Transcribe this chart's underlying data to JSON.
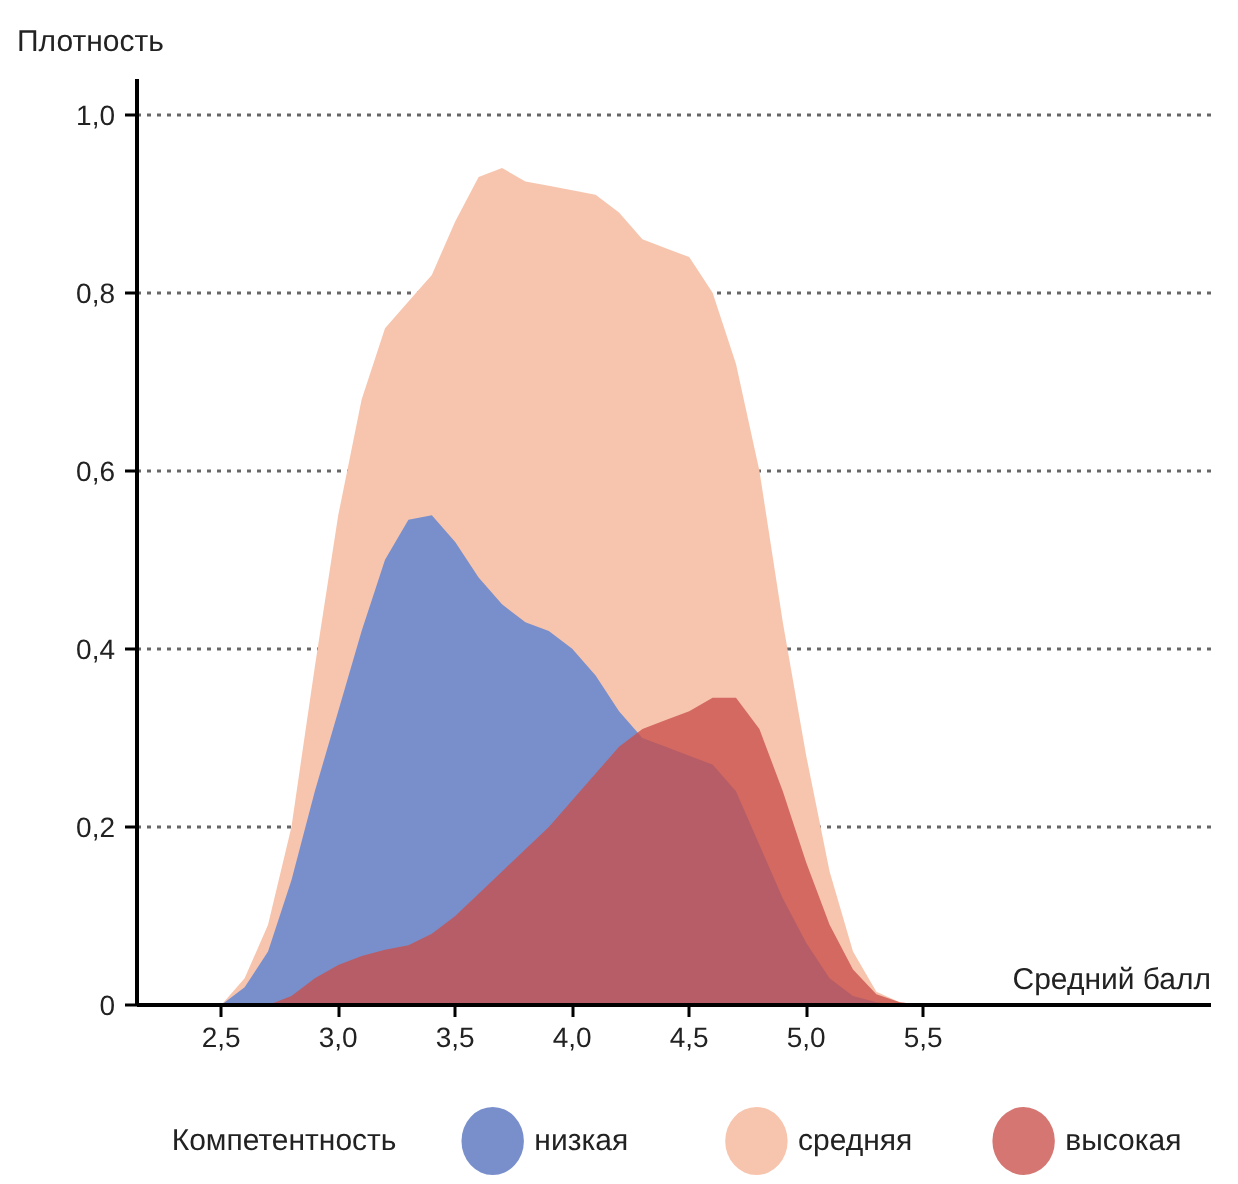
{
  "chart_data": {
    "type": "area",
    "ylabel": "Плотность",
    "xlabel": "Средний балл",
    "legend_title": "Компетентность",
    "xlim": [
      2.14,
      6.73
    ],
    "ylim": [
      0,
      1.04
    ],
    "xticks": [
      {
        "value": 2.5,
        "label": "2,5"
      },
      {
        "value": 3.0,
        "label": "3,0"
      },
      {
        "value": 3.5,
        "label": "3,5"
      },
      {
        "value": 4.0,
        "label": "4,0"
      },
      {
        "value": 4.5,
        "label": "4,5"
      },
      {
        "value": 5.0,
        "label": "5,0"
      },
      {
        "value": 5.5,
        "label": "5,5"
      }
    ],
    "yticks": [
      0,
      {
        "value": 0.2,
        "label": "0,2"
      },
      {
        "value": 0.4,
        "label": "0,4"
      },
      {
        "value": 0.6,
        "label": "0,6"
      },
      {
        "value": 0.8,
        "label": "0,8"
      },
      {
        "value": 1.0,
        "label": "1,0"
      }
    ],
    "grid": "y",
    "legend": "bottom",
    "x": [
      2.5,
      2.6,
      2.7,
      2.8,
      2.9,
      3.0,
      3.1,
      3.2,
      3.3,
      3.4,
      3.5,
      3.6,
      3.7,
      3.8,
      3.9,
      4.0,
      4.1,
      4.2,
      4.3,
      4.4,
      4.5,
      4.6,
      4.7,
      4.8,
      4.9,
      5.0,
      5.1,
      5.2,
      5.3,
      5.4,
      5.5
    ],
    "series": [
      {
        "name": "средняя",
        "color": "#f7c5ae",
        "values": [
          0,
          0.03,
          0.09,
          0.2,
          0.38,
          0.55,
          0.68,
          0.76,
          0.79,
          0.82,
          0.88,
          0.93,
          0.94,
          0.925,
          0.92,
          0.915,
          0.91,
          0.89,
          0.86,
          0.85,
          0.84,
          0.8,
          0.72,
          0.6,
          0.43,
          0.28,
          0.15,
          0.06,
          0.015,
          0.003,
          0
        ]
      },
      {
        "name": "низкая",
        "color": "#788fcc",
        "values": [
          0,
          0.02,
          0.06,
          0.14,
          0.24,
          0.33,
          0.42,
          0.5,
          0.545,
          0.55,
          0.52,
          0.48,
          0.45,
          0.43,
          0.42,
          0.4,
          0.37,
          0.33,
          0.3,
          0.29,
          0.28,
          0.27,
          0.24,
          0.18,
          0.12,
          0.07,
          0.03,
          0.01,
          0.003,
          0,
          0
        ]
      },
      {
        "name": "высокая",
        "color": "#c94f4a",
        "values": [
          0,
          0,
          0,
          0.01,
          0.03,
          0.045,
          0.055,
          0.062,
          0.067,
          0.08,
          0.1,
          0.125,
          0.15,
          0.175,
          0.2,
          0.23,
          0.26,
          0.29,
          0.31,
          0.32,
          0.33,
          0.345,
          0.345,
          0.31,
          0.24,
          0.16,
          0.09,
          0.04,
          0.012,
          0.003,
          0
        ]
      }
    ]
  }
}
